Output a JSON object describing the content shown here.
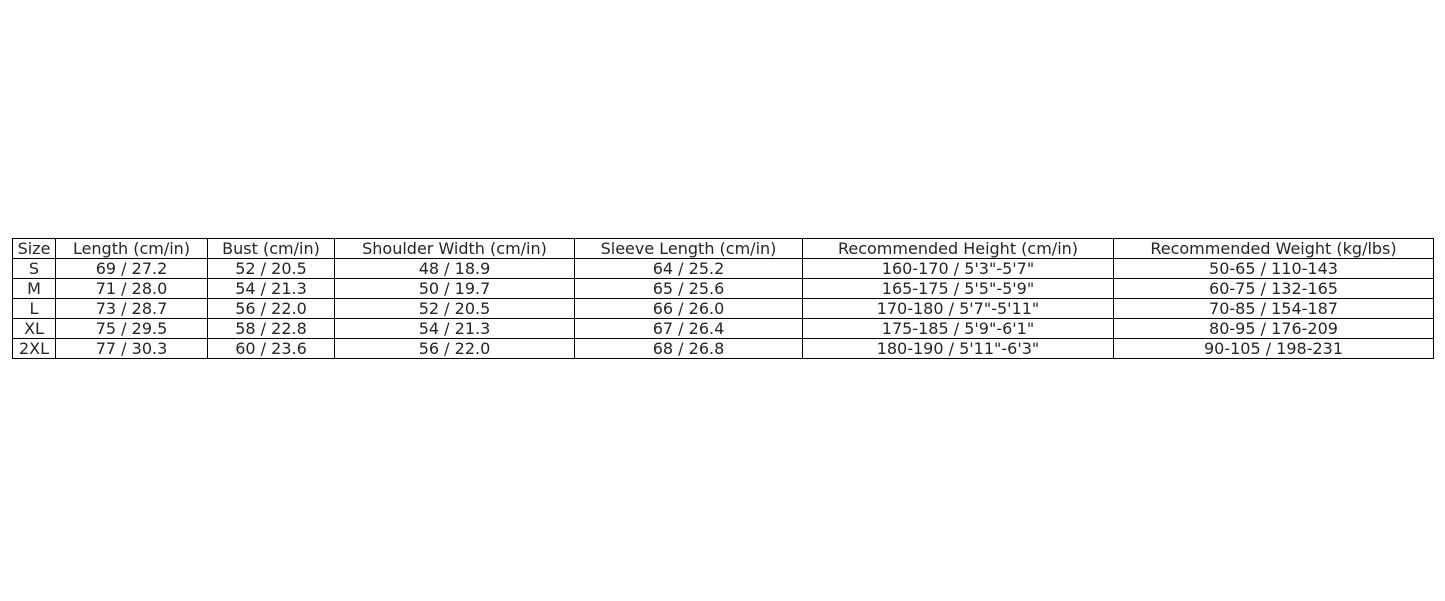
{
  "chart_data": {
    "type": "table",
    "columns": [
      "Size",
      "Length (cm/in)",
      "Bust (cm/in)",
      "Shoulder Width (cm/in)",
      "Sleeve Length (cm/in)",
      "Recommended Height (cm/in)",
      "Recommended Weight (kg/lbs)"
    ],
    "rows": [
      [
        "S",
        "69 / 27.2",
        "52 / 20.5",
        "48 / 18.9",
        "64 / 25.2",
        "160-170 / 5'3\"-5'7\"",
        "50-65 / 110-143"
      ],
      [
        "M",
        "71 / 28.0",
        "54 / 21.3",
        "50 / 19.7",
        "65 / 25.6",
        "165-175 / 5'5\"-5'9\"",
        "60-75 / 132-165"
      ],
      [
        "L",
        "73 / 28.7",
        "56 / 22.0",
        "52 / 20.5",
        "66 / 26.0",
        "170-180 / 5'7\"-5'11\"",
        "70-85 / 154-187"
      ],
      [
        "XL",
        "75 / 29.5",
        "58 / 22.8",
        "54 / 21.3",
        "67 / 26.4",
        "175-185 / 5'9\"-6'1\"",
        "80-95 / 176-209"
      ],
      [
        "2XL",
        "77 / 30.3",
        "60 / 23.6",
        "56 / 22.0",
        "68 / 26.8",
        "180-190 / 5'11\"-6'3\"",
        "90-105 / 198-231"
      ]
    ]
  }
}
